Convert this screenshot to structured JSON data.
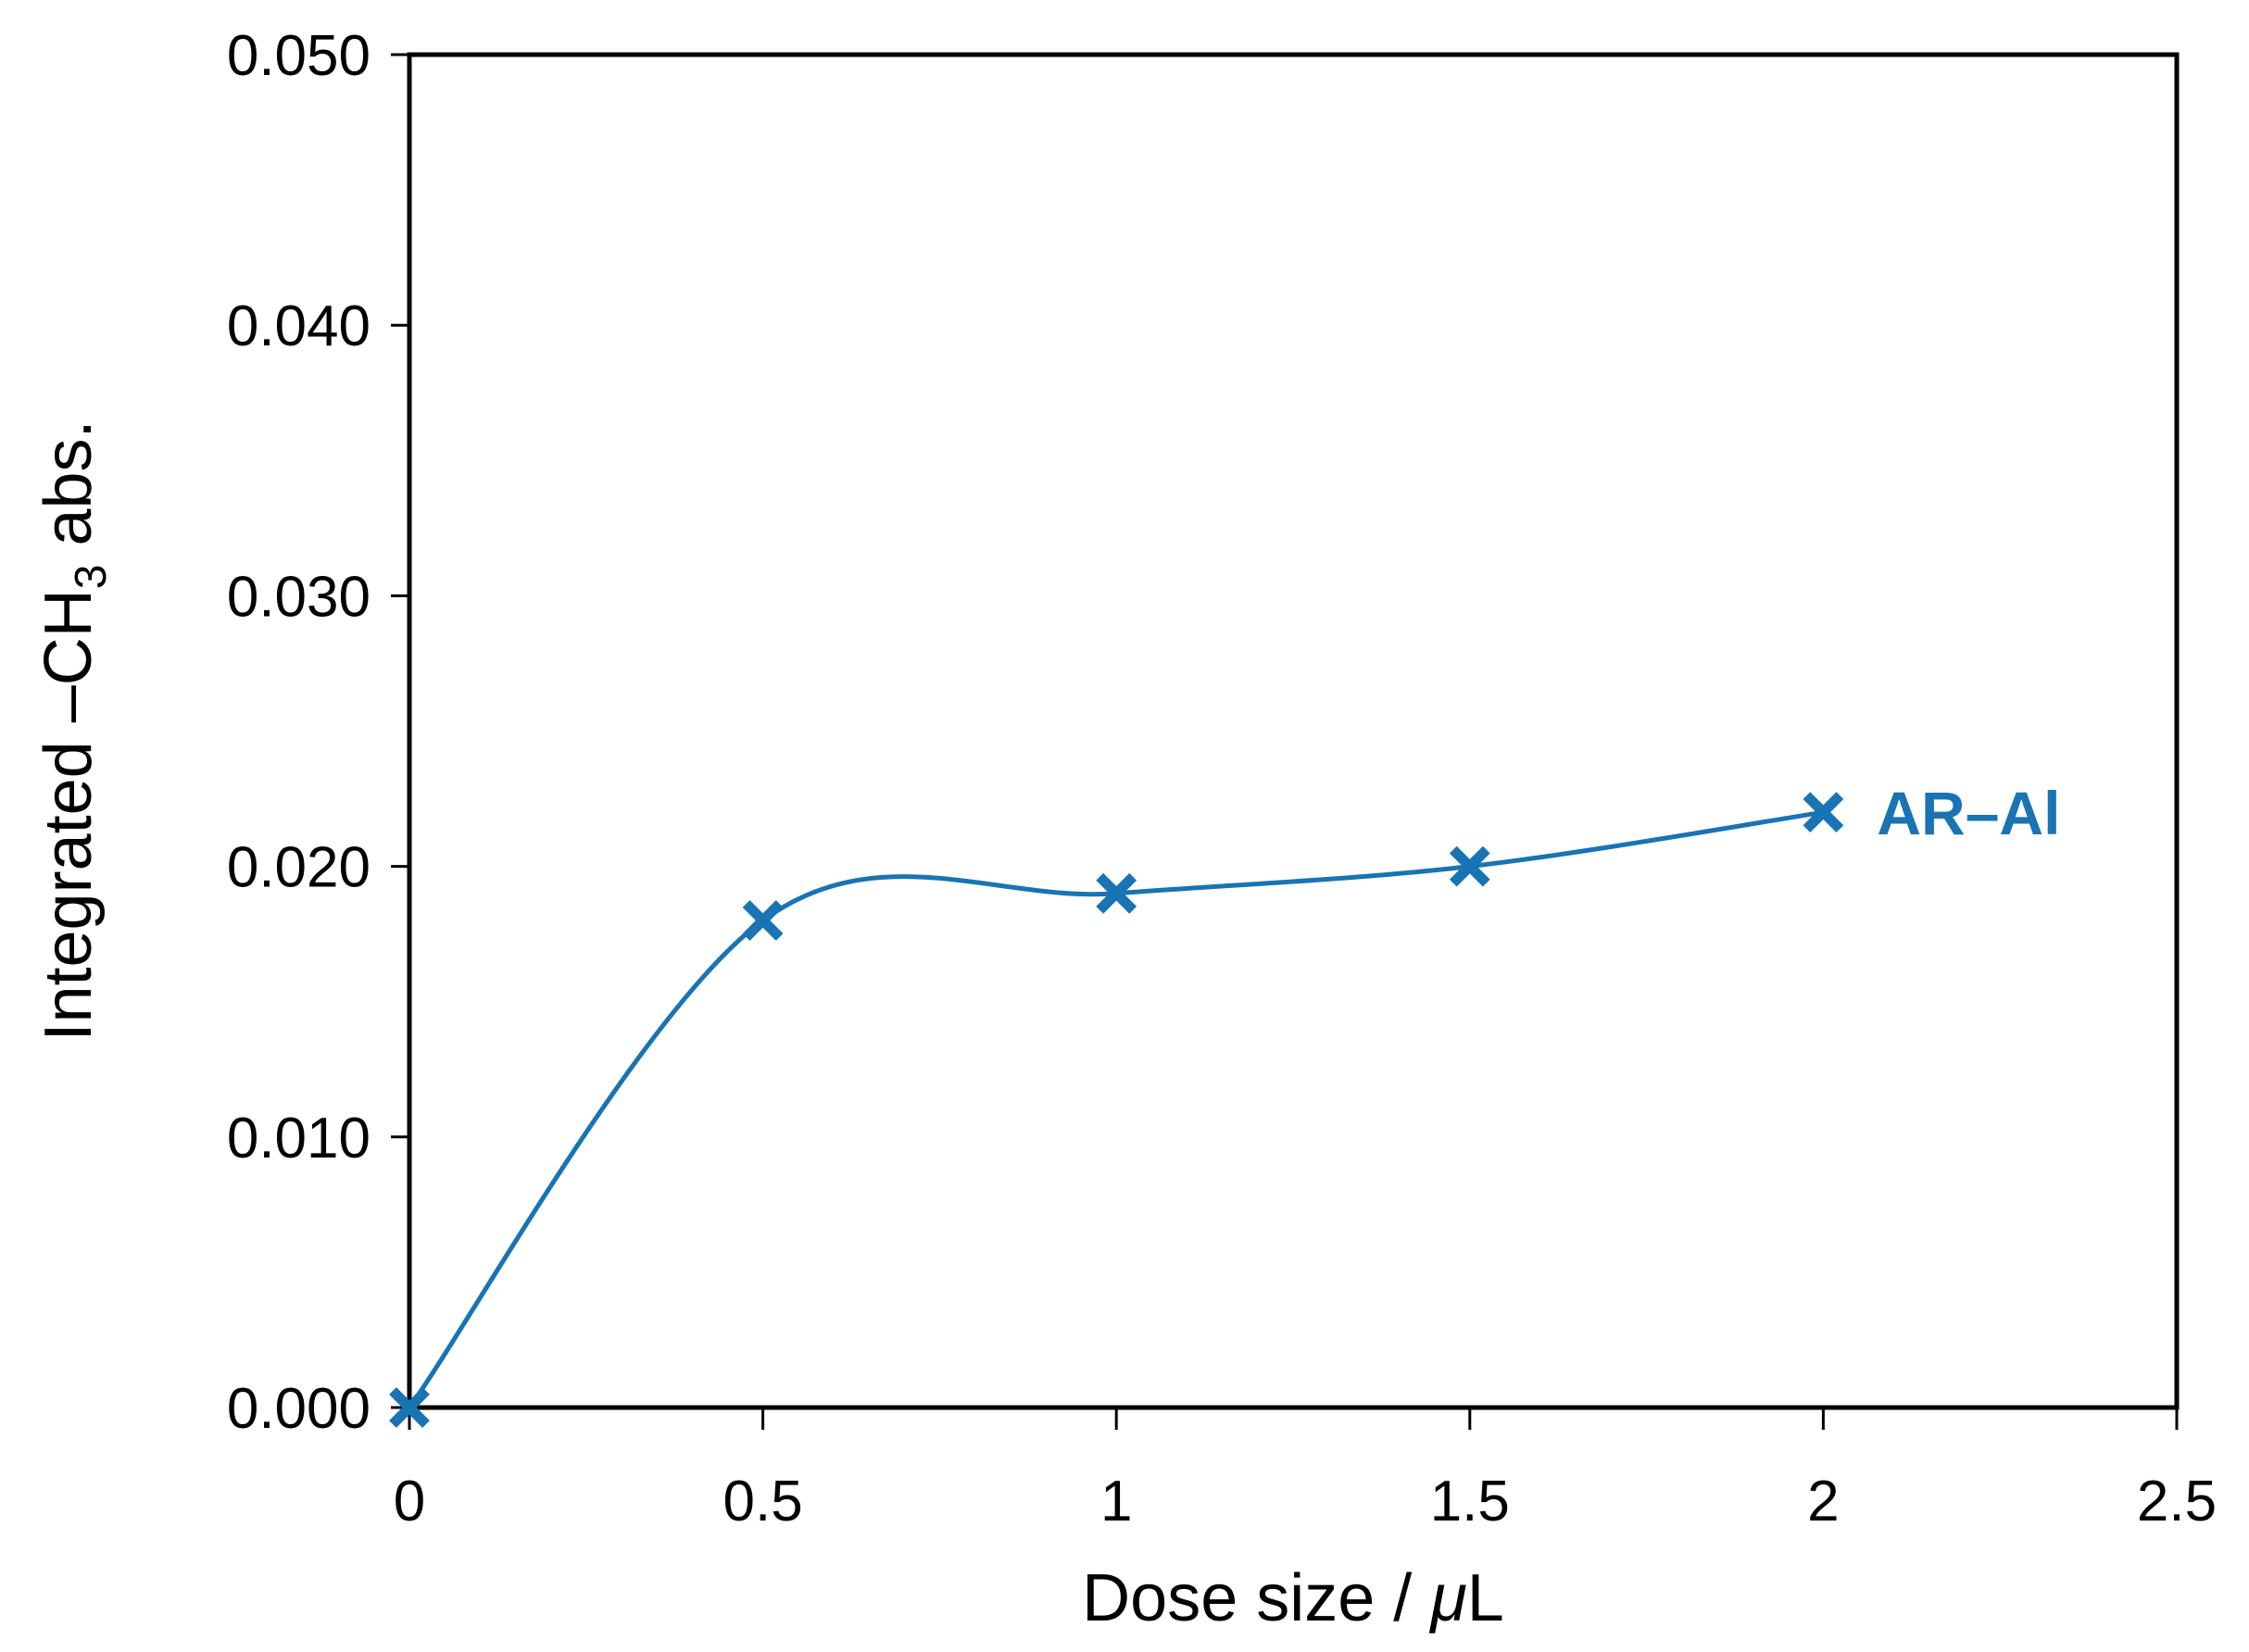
{
  "chart_data": {
    "type": "line",
    "title": "",
    "xlabel": "Dose size / μL",
    "xlabel_parts": {
      "main": "Dose size / ",
      "italic": "μ",
      "tail": "L"
    },
    "ylabel": "Integrated –CH3 abs.",
    "ylabel_parts": {
      "pre": "Integrated –CH",
      "sub": "3",
      "post": " abs."
    },
    "xlim": [
      0,
      2.5
    ],
    "ylim": [
      0,
      0.05
    ],
    "x_ticks": [
      0,
      0.5,
      1,
      1.5,
      2,
      2.5
    ],
    "x_tick_labels": [
      "0",
      "0.5",
      "1",
      "1.5",
      "2",
      "2.5"
    ],
    "y_ticks": [
      0,
      0.01,
      0.02,
      0.03,
      0.04,
      0.05
    ],
    "y_tick_labels": [
      "0.000",
      "0.010",
      "0.020",
      "0.030",
      "0.040",
      "0.050"
    ],
    "grid": false,
    "legend": "inline label at last point",
    "series": [
      {
        "name": "AR–Al",
        "color": "#1874b4",
        "marker": "x",
        "line": "smoothed",
        "x": [
          0,
          0.5,
          1,
          1.5,
          2
        ],
        "values": [
          0.0,
          0.018,
          0.019,
          0.02,
          0.022
        ]
      }
    ]
  }
}
